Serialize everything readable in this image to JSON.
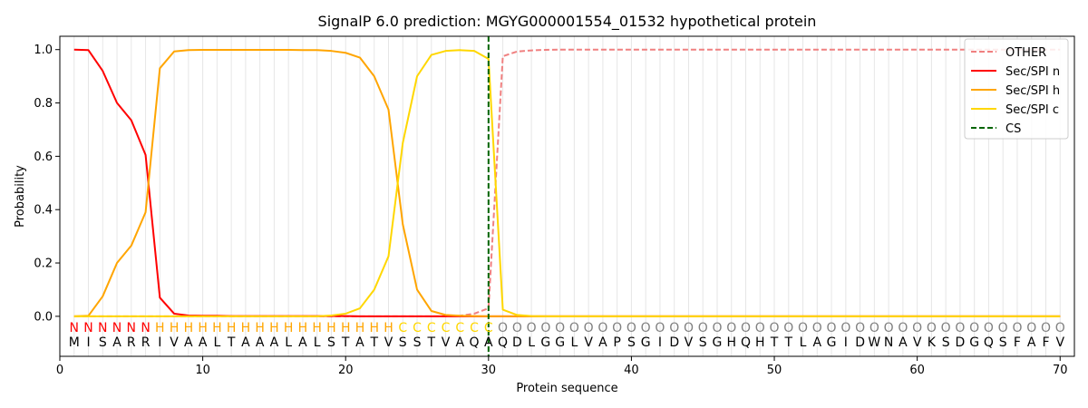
{
  "chart_data": {
    "type": "line",
    "title": "SignalP 6.0 prediction: MGYG000001554_01532 hypothetical protein",
    "xlabel": "Protein sequence",
    "ylabel": "Probability",
    "xlim": [
      0,
      71
    ],
    "ylim": [
      -0.15,
      1.05
    ],
    "xticks": [
      0,
      10,
      20,
      30,
      40,
      50,
      60,
      70
    ],
    "yticks": [
      0.0,
      0.2,
      0.4,
      0.6,
      0.8,
      1.0
    ],
    "ytick_labels": [
      "0.0",
      "0.2",
      "0.4",
      "0.6",
      "0.8",
      "1.0"
    ],
    "grid": "vertical lines at each residue",
    "legend_position": "top-right",
    "sequence": [
      "M",
      "I",
      "S",
      "A",
      "R",
      "R",
      "I",
      "V",
      "A",
      "A",
      "L",
      "T",
      "A",
      "A",
      "A",
      "L",
      "A",
      "L",
      "S",
      "T",
      "A",
      "T",
      "V",
      "S",
      "S",
      "T",
      "V",
      "A",
      "Q",
      "A",
      "Q",
      "D",
      "L",
      "G",
      "G",
      "L",
      "V",
      "A",
      "P",
      "S",
      "G",
      "I",
      "D",
      "V",
      "S",
      "G",
      "H",
      "Q",
      "H",
      "T",
      "T",
      "L",
      "A",
      "G",
      "I",
      "D",
      "W",
      "N",
      "A",
      "V",
      "K",
      "S",
      "D",
      "G",
      "Q",
      "S",
      "F",
      "A",
      "F",
      "V"
    ],
    "labels": [
      "N",
      "N",
      "N",
      "N",
      "N",
      "N",
      "H",
      "H",
      "H",
      "H",
      "H",
      "H",
      "H",
      "H",
      "H",
      "H",
      "H",
      "H",
      "H",
      "H",
      "H",
      "H",
      "H",
      "C",
      "C",
      "C",
      "C",
      "C",
      "C",
      "C",
      "O",
      "O",
      "O",
      "O",
      "O",
      "O",
      "O",
      "O",
      "O",
      "O",
      "O",
      "O",
      "O",
      "O",
      "O",
      "O",
      "O",
      "O",
      "O",
      "O",
      "O",
      "O",
      "O",
      "O",
      "O",
      "O",
      "O",
      "O",
      "O",
      "O",
      "O",
      "O",
      "O",
      "O",
      "O",
      "O",
      "O",
      "O",
      "O",
      "O"
    ],
    "label_colors": {
      "N": "#ff0000",
      "H": "#ffa500",
      "C": "#ffd700",
      "O": "#808080"
    },
    "x": [
      1,
      2,
      3,
      4,
      5,
      6,
      7,
      8,
      9,
      10,
      11,
      12,
      13,
      14,
      15,
      16,
      17,
      18,
      19,
      20,
      21,
      22,
      23,
      24,
      25,
      26,
      27,
      28,
      29,
      30,
      31,
      32,
      33,
      34,
      35,
      36,
      37,
      38,
      39,
      40,
      41,
      42,
      43,
      44,
      45,
      46,
      47,
      48,
      49,
      50,
      51,
      52,
      53,
      54,
      55,
      56,
      57,
      58,
      59,
      60,
      61,
      62,
      63,
      64,
      65,
      66,
      67,
      68,
      69,
      70
    ],
    "series": [
      {
        "name": "OTHER",
        "color": "#f08080",
        "style": "dashed",
        "values": [
          0,
          0,
          0,
          0,
          0,
          0,
          0,
          0,
          0,
          0,
          0,
          0,
          0,
          0,
          0,
          0,
          0,
          0,
          0,
          0,
          0,
          0,
          0,
          0,
          0,
          0,
          0,
          0.002,
          0.01,
          0.03,
          0.975,
          0.993,
          0.997,
          0.999,
          1,
          1,
          1,
          1,
          1,
          1,
          1,
          1,
          1,
          1,
          1,
          1,
          1,
          1,
          1,
          1,
          1,
          1,
          1,
          1,
          1,
          1,
          1,
          1,
          1,
          1,
          1,
          1,
          1,
          1,
          1,
          1,
          1,
          1,
          1,
          1
        ]
      },
      {
        "name": "Sec/SPI n",
        "color": "#ff0000",
        "style": "solid",
        "values": [
          1.0,
          0.998,
          0.92,
          0.8,
          0.735,
          0.605,
          0.07,
          0.01,
          0.003,
          0.002,
          0.002,
          0.001,
          0.001,
          0.001,
          0.001,
          0.001,
          0.001,
          0.001,
          0.001,
          0.001,
          0,
          0,
          0,
          0,
          0,
          0,
          0,
          0,
          0,
          0,
          0,
          0,
          0,
          0,
          0,
          0,
          0,
          0,
          0,
          0,
          0,
          0,
          0,
          0,
          0,
          0,
          0,
          0,
          0,
          0,
          0,
          0,
          0,
          0,
          0,
          0,
          0,
          0,
          0,
          0,
          0,
          0,
          0,
          0,
          0,
          0,
          0,
          0,
          0,
          0
        ]
      },
      {
        "name": "Sec/SPI h",
        "color": "#ffa500",
        "style": "solid",
        "values": [
          0,
          0.002,
          0.075,
          0.2,
          0.265,
          0.39,
          0.93,
          0.993,
          0.998,
          0.999,
          0.999,
          0.999,
          0.999,
          0.999,
          0.999,
          0.999,
          0.998,
          0.998,
          0.995,
          0.988,
          0.97,
          0.9,
          0.775,
          0.345,
          0.1,
          0.02,
          0.005,
          0.002,
          0.001,
          0,
          0,
          0,
          0,
          0,
          0,
          0,
          0,
          0,
          0,
          0,
          0,
          0,
          0,
          0,
          0,
          0,
          0,
          0,
          0,
          0,
          0,
          0,
          0,
          0,
          0,
          0,
          0,
          0,
          0,
          0,
          0,
          0,
          0,
          0,
          0,
          0,
          0,
          0,
          0,
          0
        ]
      },
      {
        "name": "Sec/SPI c",
        "color": "#ffd700",
        "style": "solid",
        "values": [
          0,
          0,
          0,
          0,
          0,
          0,
          0,
          0,
          0,
          0,
          0,
          0,
          0,
          0,
          0,
          0,
          0,
          0,
          0.003,
          0.01,
          0.03,
          0.1,
          0.225,
          0.65,
          0.9,
          0.98,
          0.995,
          0.998,
          0.995,
          0.965,
          0.025,
          0.005,
          0.001,
          0,
          0,
          0,
          0,
          0,
          0,
          0,
          0,
          0,
          0,
          0,
          0,
          0,
          0,
          0,
          0,
          0,
          0,
          0,
          0,
          0,
          0,
          0,
          0,
          0,
          0,
          0,
          0,
          0,
          0,
          0,
          0,
          0,
          0,
          0,
          0,
          0
        ]
      },
      {
        "name": "CS",
        "color": "#006400",
        "style": "dashed",
        "vertical_x": 30
      }
    ]
  }
}
